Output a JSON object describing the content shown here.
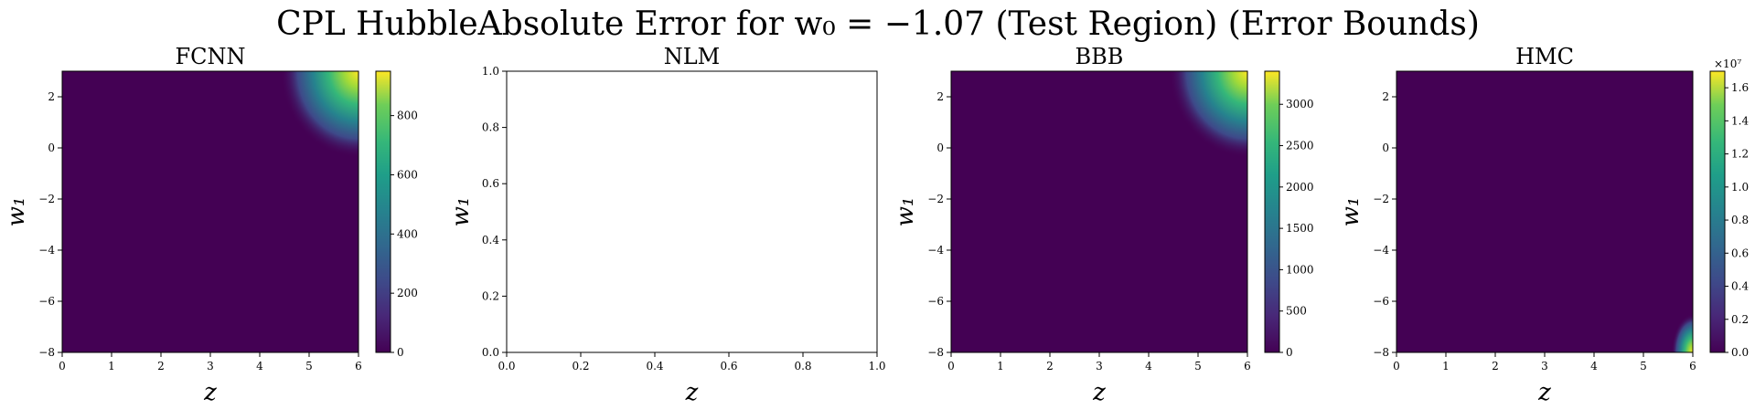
{
  "figure_title": "CPL HubbleAbsolute Error for w₀ = −1.07 (Test Region) (Error Bounds)",
  "chart_data": [
    {
      "type": "heatmap",
      "title": "FCNN",
      "xlabel": "z",
      "ylabel": "w₁",
      "xlim": [
        0,
        6
      ],
      "ylim": [
        -8,
        3
      ],
      "x_ticks": [
        "0",
        "1",
        "2",
        "3",
        "4",
        "5",
        "6"
      ],
      "y_ticks": [
        "−8",
        "−6",
        "−4",
        "−2",
        "0",
        "2"
      ],
      "colorbar": {
        "min": 0,
        "max": 950,
        "ticks": [
          "0",
          "200",
          "400",
          "600",
          "800"
        ],
        "multiplier": ""
      },
      "hotspot": {
        "z": 6,
        "w1": 3
      },
      "empty": false
    },
    {
      "type": "heatmap",
      "title": "NLM",
      "xlabel": "z",
      "ylabel": "w₁",
      "xlim": [
        0,
        1
      ],
      "ylim": [
        0,
        1
      ],
      "x_ticks": [
        "0.0",
        "0.2",
        "0.4",
        "0.6",
        "0.8",
        "1.0"
      ],
      "y_ticks": [
        "0.0",
        "0.2",
        "0.4",
        "0.6",
        "0.8",
        "1.0"
      ],
      "empty": true
    },
    {
      "type": "heatmap",
      "title": "BBB",
      "xlabel": "z",
      "ylabel": "w₁",
      "xlim": [
        0,
        6
      ],
      "ylim": [
        -8,
        3
      ],
      "x_ticks": [
        "0",
        "1",
        "2",
        "3",
        "4",
        "5",
        "6"
      ],
      "y_ticks": [
        "−8",
        "−6",
        "−4",
        "−2",
        "0",
        "2"
      ],
      "colorbar": {
        "min": 0,
        "max": 3400,
        "ticks": [
          "0",
          "500",
          "1000",
          "1500",
          "2000",
          "2500",
          "3000"
        ],
        "multiplier": ""
      },
      "hotspot": {
        "z": 6,
        "w1": 3
      },
      "empty": false
    },
    {
      "type": "heatmap",
      "title": "HMC",
      "xlabel": "z",
      "ylabel": "w₁",
      "xlim": [
        0,
        6
      ],
      "ylim": [
        -8,
        3
      ],
      "x_ticks": [
        "0",
        "1",
        "2",
        "3",
        "4",
        "5",
        "6"
      ],
      "y_ticks": [
        "−8",
        "−6",
        "−4",
        "−2",
        "0",
        "2"
      ],
      "colorbar": {
        "min": 0,
        "max": 1.7,
        "ticks": [
          "0.0",
          "0.2",
          "0.4",
          "0.6",
          "0.8",
          "1.0",
          "1.2",
          "1.4",
          "1.6"
        ],
        "multiplier": "×10⁷"
      },
      "hotspot": {
        "z": 6,
        "w1": -8
      },
      "empty": false
    }
  ],
  "colors": {
    "viridis_low": "#440154",
    "viridis_mid": "#21918c",
    "viridis_high": "#fde725"
  }
}
